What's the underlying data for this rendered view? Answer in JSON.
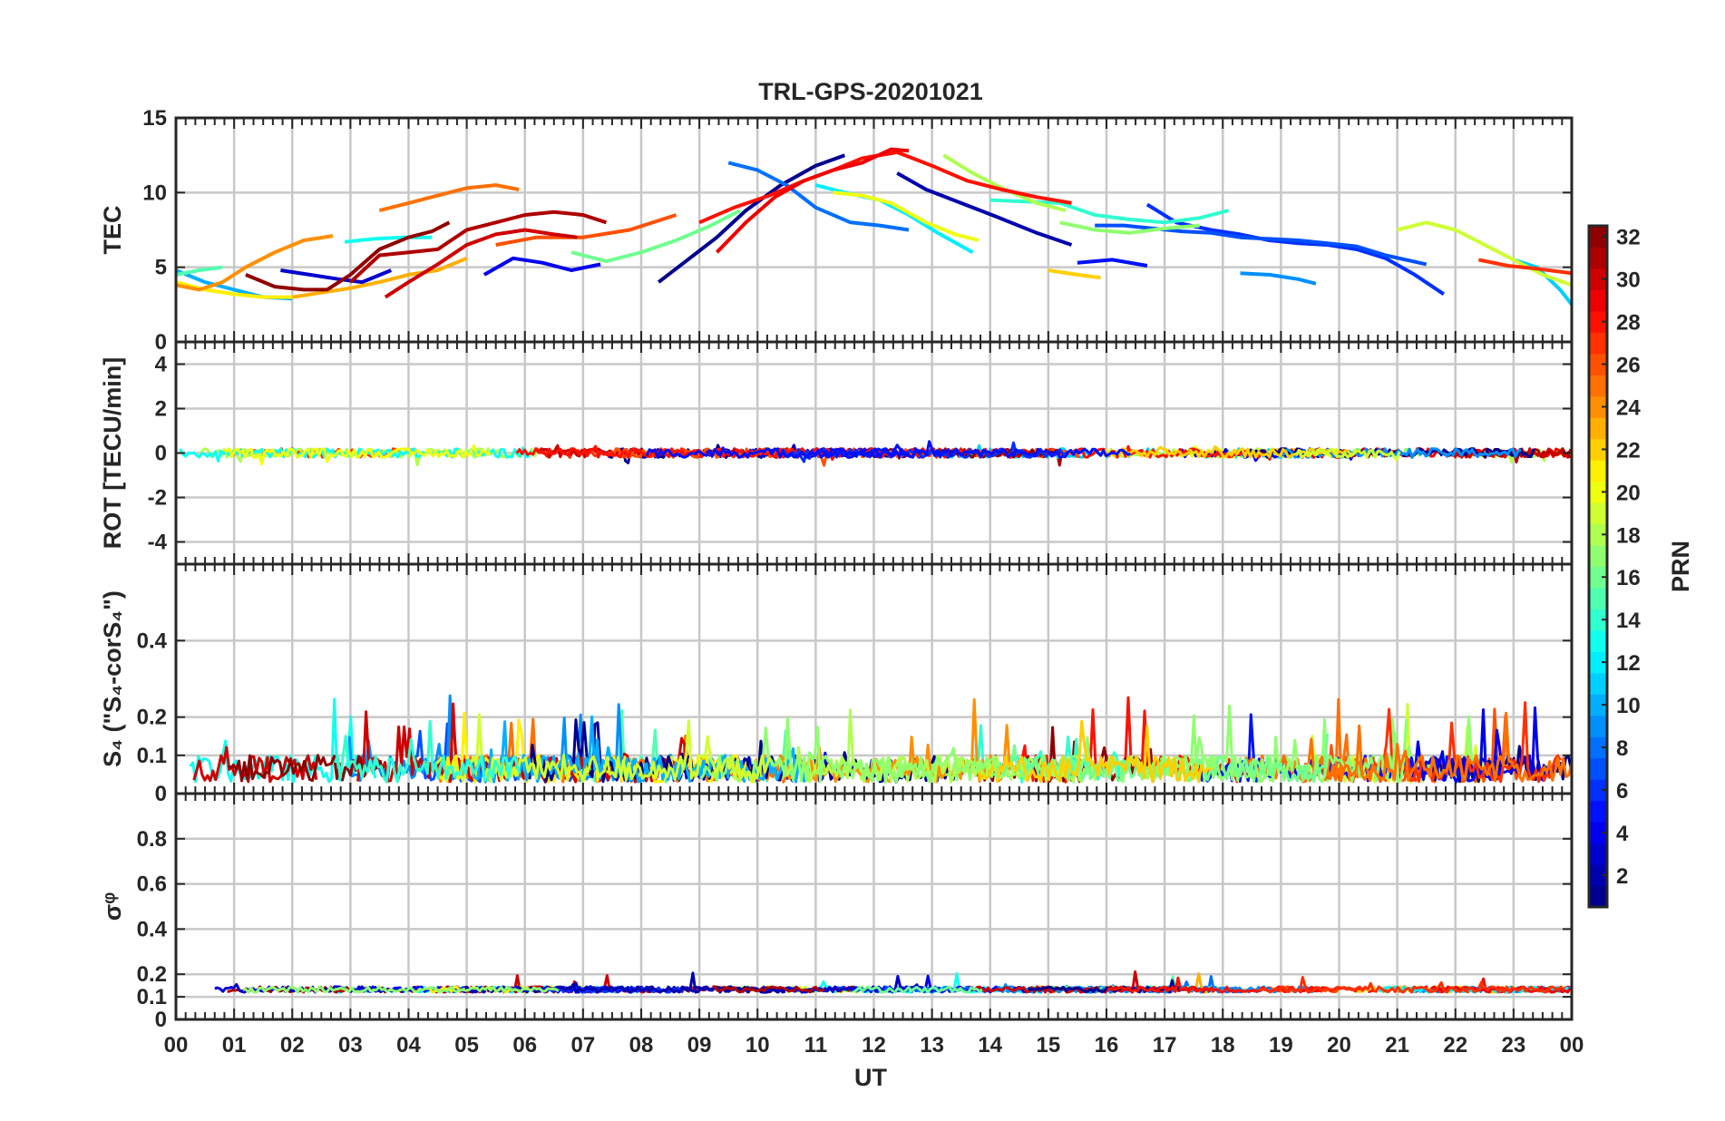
{
  "chart_data": {
    "type": "line",
    "title": "TRL-GPS-20201021",
    "xlabel": "UT",
    "x_tick_labels": [
      "00",
      "01",
      "02",
      "03",
      "04",
      "05",
      "06",
      "07",
      "08",
      "09",
      "10",
      "11",
      "12",
      "13",
      "14",
      "15",
      "16",
      "17",
      "18",
      "19",
      "20",
      "21",
      "22",
      "23",
      "00"
    ],
    "xlim_hours": [
      0,
      24
    ],
    "grid": true,
    "colorbar": {
      "label": "PRN",
      "colormap": "jet",
      "range": [
        1,
        32
      ],
      "tick_labels": [
        "2",
        "4",
        "6",
        "8",
        "10",
        "12",
        "14",
        "16",
        "18",
        "20",
        "22",
        "24",
        "26",
        "28",
        "30",
        "32"
      ],
      "tick_values": [
        2,
        4,
        6,
        8,
        10,
        12,
        14,
        16,
        18,
        20,
        22,
        24,
        26,
        28,
        30,
        32
      ],
      "placement": "right"
    },
    "panels": [
      {
        "name": "tec",
        "ylabel": "TEC",
        "ylim": [
          0,
          15
        ],
        "y_tick_labels": [
          "0",
          "5",
          "10",
          "15"
        ],
        "y_tick_values": [
          0,
          5,
          10,
          15
        ],
        "series": [
          {
            "prn": 1,
            "x": [
              8.3,
              8.8,
              9.3,
              9.8,
              10.4,
              11.0,
              11.5
            ],
            "y": [
              4.0,
              5.5,
              7.0,
              8.8,
              10.5,
              11.8,
              12.5
            ]
          },
          {
            "prn": 2,
            "x": [
              12.4,
              12.9,
              13.5,
              14.1,
              14.8,
              15.4
            ],
            "y": [
              11.3,
              10.2,
              9.3,
              8.4,
              7.3,
              6.5
            ]
          },
          {
            "prn": 3,
            "x": [
              1.8,
              2.3,
              2.8,
              3.2,
              3.7
            ],
            "y": [
              4.8,
              4.5,
              4.2,
              4.0,
              4.8
            ]
          },
          {
            "prn": 4,
            "x": [
              5.3,
              5.8,
              6.3,
              6.8,
              7.3
            ],
            "y": [
              4.5,
              5.6,
              5.3,
              4.8,
              5.2
            ]
          },
          {
            "prn": 5,
            "x": [
              15.5,
              16.1,
              16.7
            ],
            "y": [
              5.3,
              5.5,
              5.1
            ]
          },
          {
            "prn": 6,
            "x": [
              16.7,
              17.2,
              17.8,
              18.3,
              18.8,
              19.3,
              19.8,
              20.3,
              20.8,
              21.3,
              21.8
            ],
            "y": [
              9.2,
              8.0,
              7.5,
              7.2,
              6.8,
              6.6,
              6.5,
              6.2,
              5.6,
              4.5,
              3.2
            ]
          },
          {
            "prn": 7,
            "x": [
              15.8,
              16.3,
              16.8,
              17.3,
              17.8,
              18.3,
              18.8,
              19.3,
              19.8,
              20.3,
              20.8,
              21.5
            ],
            "y": [
              7.8,
              7.8,
              7.6,
              7.4,
              7.3,
              7.0,
              6.9,
              6.8,
              6.6,
              6.4,
              5.8,
              5.2
            ]
          },
          {
            "prn": 8,
            "x": [
              9.5,
              10.0,
              10.5,
              11.0,
              11.6,
              12.1,
              12.6
            ],
            "y": [
              12.0,
              11.5,
              10.5,
              9.0,
              8.0,
              7.8,
              7.5
            ]
          },
          {
            "prn": 9,
            "x": [
              18.3,
              18.8,
              19.3,
              19.6
            ],
            "y": [
              4.6,
              4.5,
              4.2,
              3.9
            ]
          },
          {
            "prn": 10,
            "x": [
              0.0,
              0.5,
              1.0,
              1.5,
              2.0
            ],
            "y": [
              4.8,
              4.0,
              3.5,
              3.0,
              2.9
            ]
          },
          {
            "prn": 11,
            "x": [
              23.0,
              23.4,
              23.8,
              24.0
            ],
            "y": [
              5.5,
              5.0,
              3.5,
              2.5
            ]
          },
          {
            "prn": 12,
            "x": [
              11.0,
              11.5,
              12.1,
              12.6,
              13.1,
              13.7
            ],
            "y": [
              10.5,
              10.0,
              9.5,
              8.5,
              7.3,
              6.0
            ]
          },
          {
            "prn": 13,
            "x": [
              2.9,
              3.4,
              3.9,
              4.4
            ],
            "y": [
              6.7,
              6.9,
              7.0,
              7.0
            ]
          },
          {
            "prn": 14,
            "x": [
              14.0,
              14.6,
              15.2,
              15.8,
              16.4,
              17.0,
              17.6,
              18.1
            ],
            "y": [
              9.5,
              9.4,
              9.3,
              8.5,
              8.2,
              8.0,
              8.3,
              8.8
            ]
          },
          {
            "prn": 15,
            "x": [
              0.0,
              0.4,
              0.8
            ],
            "y": [
              4.5,
              4.8,
              5.0
            ]
          },
          {
            "prn": 16,
            "x": [
              6.8,
              7.4,
              8.0,
              8.6,
              9.2,
              9.7
            ],
            "y": [
              6.0,
              5.4,
              6.0,
              6.8,
              7.8,
              8.8
            ]
          },
          {
            "prn": 17,
            "x": [
              15.2,
              15.8,
              16.4,
              17.0,
              17.6
            ],
            "y": [
              8.0,
              7.5,
              7.3,
              7.6,
              7.8
            ]
          },
          {
            "prn": 18,
            "x": [
              13.2,
              13.7,
              14.2,
              14.8,
              15.3
            ],
            "y": [
              12.5,
              11.3,
              10.3,
              9.3,
              8.8
            ]
          },
          {
            "prn": 19,
            "x": [
              21.0,
              21.5,
              22.0,
              22.5,
              23.0,
              23.5,
              24.0
            ],
            "y": [
              7.5,
              8.0,
              7.5,
              6.5,
              5.5,
              4.5,
              3.8
            ]
          },
          {
            "prn": 20,
            "x": [
              11.3,
              11.8,
              12.3,
              12.9,
              13.4,
              13.8
            ],
            "y": [
              10.0,
              9.8,
              9.3,
              8.0,
              7.2,
              6.8
            ]
          },
          {
            "prn": 21,
            "x": [
              0.0,
              0.5,
              1.0,
              1.5,
              2.0
            ],
            "y": [
              4.0,
              3.5,
              3.2,
              3.0,
              3.0
            ]
          },
          {
            "prn": 22,
            "x": [
              15.0,
              15.5,
              15.9
            ],
            "y": [
              4.8,
              4.5,
              4.3
            ]
          },
          {
            "prn": 23,
            "x": [
              2.0,
              2.5,
              3.0,
              3.5,
              4.0,
              4.5,
              5.0
            ],
            "y": [
              3.0,
              3.3,
              3.6,
              4.0,
              4.5,
              4.8,
              5.6
            ]
          },
          {
            "prn": 24,
            "x": [
              0.0,
              0.4,
              0.8,
              1.2,
              1.7,
              2.2,
              2.7
            ],
            "y": [
              3.8,
              3.5,
              4.0,
              5.0,
              6.0,
              6.8,
              7.1
            ]
          },
          {
            "prn": 25,
            "x": [
              3.5,
              4.0,
              4.5,
              5.0,
              5.5,
              5.9
            ],
            "y": [
              8.8,
              9.3,
              9.8,
              10.3,
              10.5,
              10.2
            ]
          },
          {
            "prn": 26,
            "x": [
              5.5,
              6.2,
              7.0,
              7.8,
              8.6
            ],
            "y": [
              6.5,
              7.0,
              7.0,
              7.5,
              8.5
            ]
          },
          {
            "prn": 27,
            "x": [
              22.4,
              22.9,
              23.4,
              24.0
            ],
            "y": [
              5.5,
              5.1,
              4.9,
              4.6
            ]
          },
          {
            "prn": 28,
            "x": [
              9.0,
              9.6,
              10.2,
              10.8,
              11.3,
              11.8,
              12.4,
              13.0,
              13.6,
              14.2,
              14.8,
              15.4
            ],
            "y": [
              8.0,
              9.0,
              9.8,
              10.8,
              11.5,
              12.3,
              12.7,
              11.8,
              10.8,
              10.2,
              9.7,
              9.3
            ]
          },
          {
            "prn": 29,
            "x": [
              9.3,
              9.8,
              10.3,
              10.8,
              11.3,
              11.8,
              12.3,
              12.6
            ],
            "y": [
              6.0,
              8.0,
              9.7,
              10.8,
              11.5,
              12.0,
              12.9,
              12.8
            ]
          },
          {
            "prn": 30,
            "x": [
              3.6,
              4.0,
              4.5,
              5.0,
              5.5,
              6.0,
              6.5,
              6.9
            ],
            "y": [
              3.0,
              4.0,
              5.2,
              6.5,
              7.2,
              7.5,
              7.2,
              7.0
            ]
          },
          {
            "prn": 31,
            "x": [
              3.0,
              3.5,
              4.0,
              4.5,
              5.0,
              5.5,
              6.0,
              6.5,
              7.0,
              7.4
            ],
            "y": [
              4.0,
              5.8,
              6.0,
              6.2,
              7.5,
              8.0,
              8.5,
              8.7,
              8.5,
              8.0
            ]
          },
          {
            "prn": 32,
            "x": [
              1.2,
              1.7,
              2.2,
              2.6,
              3.0,
              3.5,
              4.0,
              4.4,
              4.7
            ],
            "y": [
              4.5,
              3.7,
              3.5,
              3.5,
              4.5,
              6.2,
              7.0,
              7.4,
              8.0
            ]
          }
        ]
      },
      {
        "name": "rot",
        "ylabel": "ROT [TECU/min]",
        "ylim": [
          -5,
          5
        ],
        "y_tick_labels": [
          "-4",
          "-2",
          "0",
          "2",
          "4"
        ],
        "y_tick_values": [
          -4,
          -2,
          0,
          2,
          4
        ],
        "noise": {
          "base": 0.0,
          "amplitude": 0.2,
          "spike_probability": 0.02,
          "spike_amplitude": 0.45
        }
      },
      {
        "name": "s4",
        "ylabel": "S₄ (\"S₄-corS₄\")",
        "ylim": [
          0,
          0.6
        ],
        "y_tick_labels": [
          "0",
          "0.1",
          "0.2",
          "0.4"
        ],
        "y_tick_values": [
          0,
          0.1,
          0.2,
          0.4
        ],
        "noise": {
          "base": 0.03,
          "amplitude": 0.07,
          "spike_probability": 0.05,
          "spike_amplitude": 0.16
        }
      },
      {
        "name": "sigma-phi",
        "ylabel": "σᵠ",
        "ylim": [
          0,
          1
        ],
        "y_tick_labels": [
          "0",
          "0.1",
          "0.2",
          "0.4",
          "0.6",
          "0.8"
        ],
        "y_tick_values": [
          0,
          0.1,
          0.2,
          0.4,
          0.6,
          0.8
        ],
        "noise": {
          "base": 0.12,
          "amplitude": 0.025,
          "spike_probability": 0.01,
          "spike_amplitude": 0.07
        }
      }
    ]
  }
}
